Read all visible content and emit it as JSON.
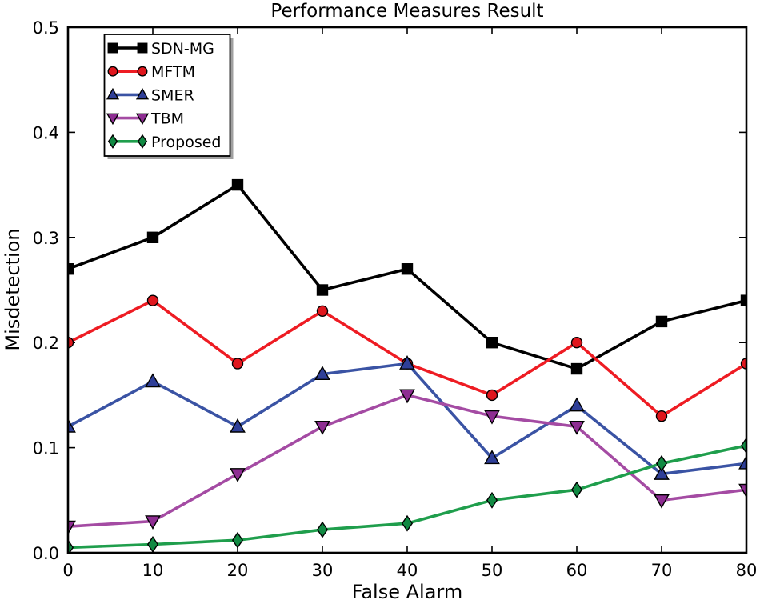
{
  "figure_background": "#ffffff",
  "chart_data": {
    "type": "line",
    "title": "Performance Measures Result",
    "xlabel": "False Alarm",
    "ylabel": "Misdetection",
    "xlim": [
      0,
      80
    ],
    "ylim": [
      0,
      0.5
    ],
    "xticks": [
      0,
      10,
      20,
      30,
      40,
      50,
      60,
      70,
      80
    ],
    "xtick_labels": [
      "0",
      "10",
      "20",
      "30",
      "40",
      "50",
      "60",
      "70",
      "80"
    ],
    "yticks": [
      0.0,
      0.1,
      0.2,
      0.3,
      0.4,
      0.5
    ],
    "ytick_labels": [
      "0.0",
      "0.1",
      "0.2",
      "0.3",
      "0.4",
      "0.5"
    ],
    "grid": false,
    "legend_position": "upper-left",
    "x": [
      0,
      10,
      20,
      30,
      40,
      50,
      60,
      70,
      80
    ],
    "series": [
      {
        "name": "SDN-MG",
        "marker": "square",
        "color": "#000000",
        "marker_fill": "#000000",
        "values": [
          0.27,
          0.3,
          0.35,
          0.25,
          0.27,
          0.2,
          0.175,
          0.22,
          0.24
        ]
      },
      {
        "name": "MFTM",
        "marker": "circle",
        "color": "#ee1c23",
        "marker_fill": "#e0161d",
        "values": [
          0.2,
          0.24,
          0.18,
          0.23,
          0.18,
          0.15,
          0.2,
          0.13,
          0.18
        ]
      },
      {
        "name": "SMER",
        "marker": "triangle-up",
        "color": "#3a53a4",
        "marker_fill": "#2f3f98",
        "values": [
          0.12,
          0.163,
          0.12,
          0.17,
          0.18,
          0.09,
          0.14,
          0.075,
          0.085
        ]
      },
      {
        "name": "TBM",
        "marker": "triangle-down",
        "color": "#a44ba3",
        "marker_fill": "#8e2d92",
        "values": [
          0.025,
          0.03,
          0.075,
          0.12,
          0.15,
          0.13,
          0.12,
          0.05,
          0.06
        ]
      },
      {
        "name": "Proposed",
        "marker": "diamond",
        "color": "#1f9e4c",
        "marker_fill": "#118a43",
        "values": [
          0.005,
          0.008,
          0.012,
          0.022,
          0.028,
          0.05,
          0.06,
          0.085,
          0.102
        ]
      }
    ],
    "legend_shadow_color": "#a0a0a0",
    "frame_color": "#000000",
    "tick_label_color": "#000000"
  }
}
